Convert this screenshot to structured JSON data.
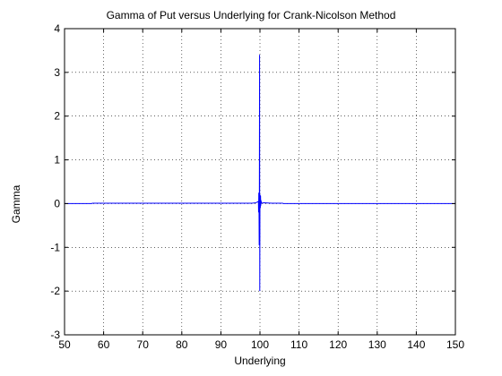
{
  "chart_data": {
    "type": "line",
    "title": "Gamma of Put versus Underlying for Crank-Nicolson Method",
    "xlabel": "Underlying",
    "ylabel": "Gamma",
    "xlim": [
      50,
      150
    ],
    "ylim": [
      -3,
      4
    ],
    "grid": true,
    "x_ticks": [
      50,
      60,
      70,
      80,
      90,
      100,
      110,
      120,
      130,
      140,
      150
    ],
    "y_ticks": [
      -3,
      -2,
      -1,
      0,
      1,
      2,
      3,
      4
    ],
    "x_tick_labels": [
      "50",
      "60",
      "70",
      "80",
      "90",
      "100",
      "110",
      "120",
      "130",
      "140",
      "150"
    ],
    "y_tick_labels": [
      "-3",
      "-2",
      "-1",
      "0",
      "1",
      "2",
      "3",
      "4"
    ],
    "series": [
      {
        "color": "#0000ff",
        "x": [
          50,
          57,
          57.1,
          60,
          65,
          70,
          75,
          80,
          85,
          90,
          95,
          98,
          99,
          99.6,
          99.65,
          99.7,
          99.75,
          99.8,
          99.85,
          99.9,
          99.95,
          100,
          100.05,
          100.1,
          100.15,
          100.2,
          100.25,
          100.3,
          100.35,
          100.4,
          101,
          103,
          105,
          105.8,
          106,
          110,
          120,
          130,
          140,
          150
        ],
        "y": [
          0,
          0,
          0.01,
          0.01,
          0.01,
          0.01,
          0.01,
          0.01,
          0.01,
          0.01,
          0.01,
          0.01,
          0.02,
          0.05,
          -0.2,
          0.25,
          0.1,
          -0.95,
          0.3,
          3.4,
          -2.0,
          0.05,
          0.2,
          -0.1,
          0.18,
          -0.05,
          0.08,
          0.02,
          0.03,
          0.01,
          0.02,
          0.01,
          0.01,
          0.01,
          0,
          0,
          0,
          0,
          0,
          0
        ]
      }
    ]
  }
}
